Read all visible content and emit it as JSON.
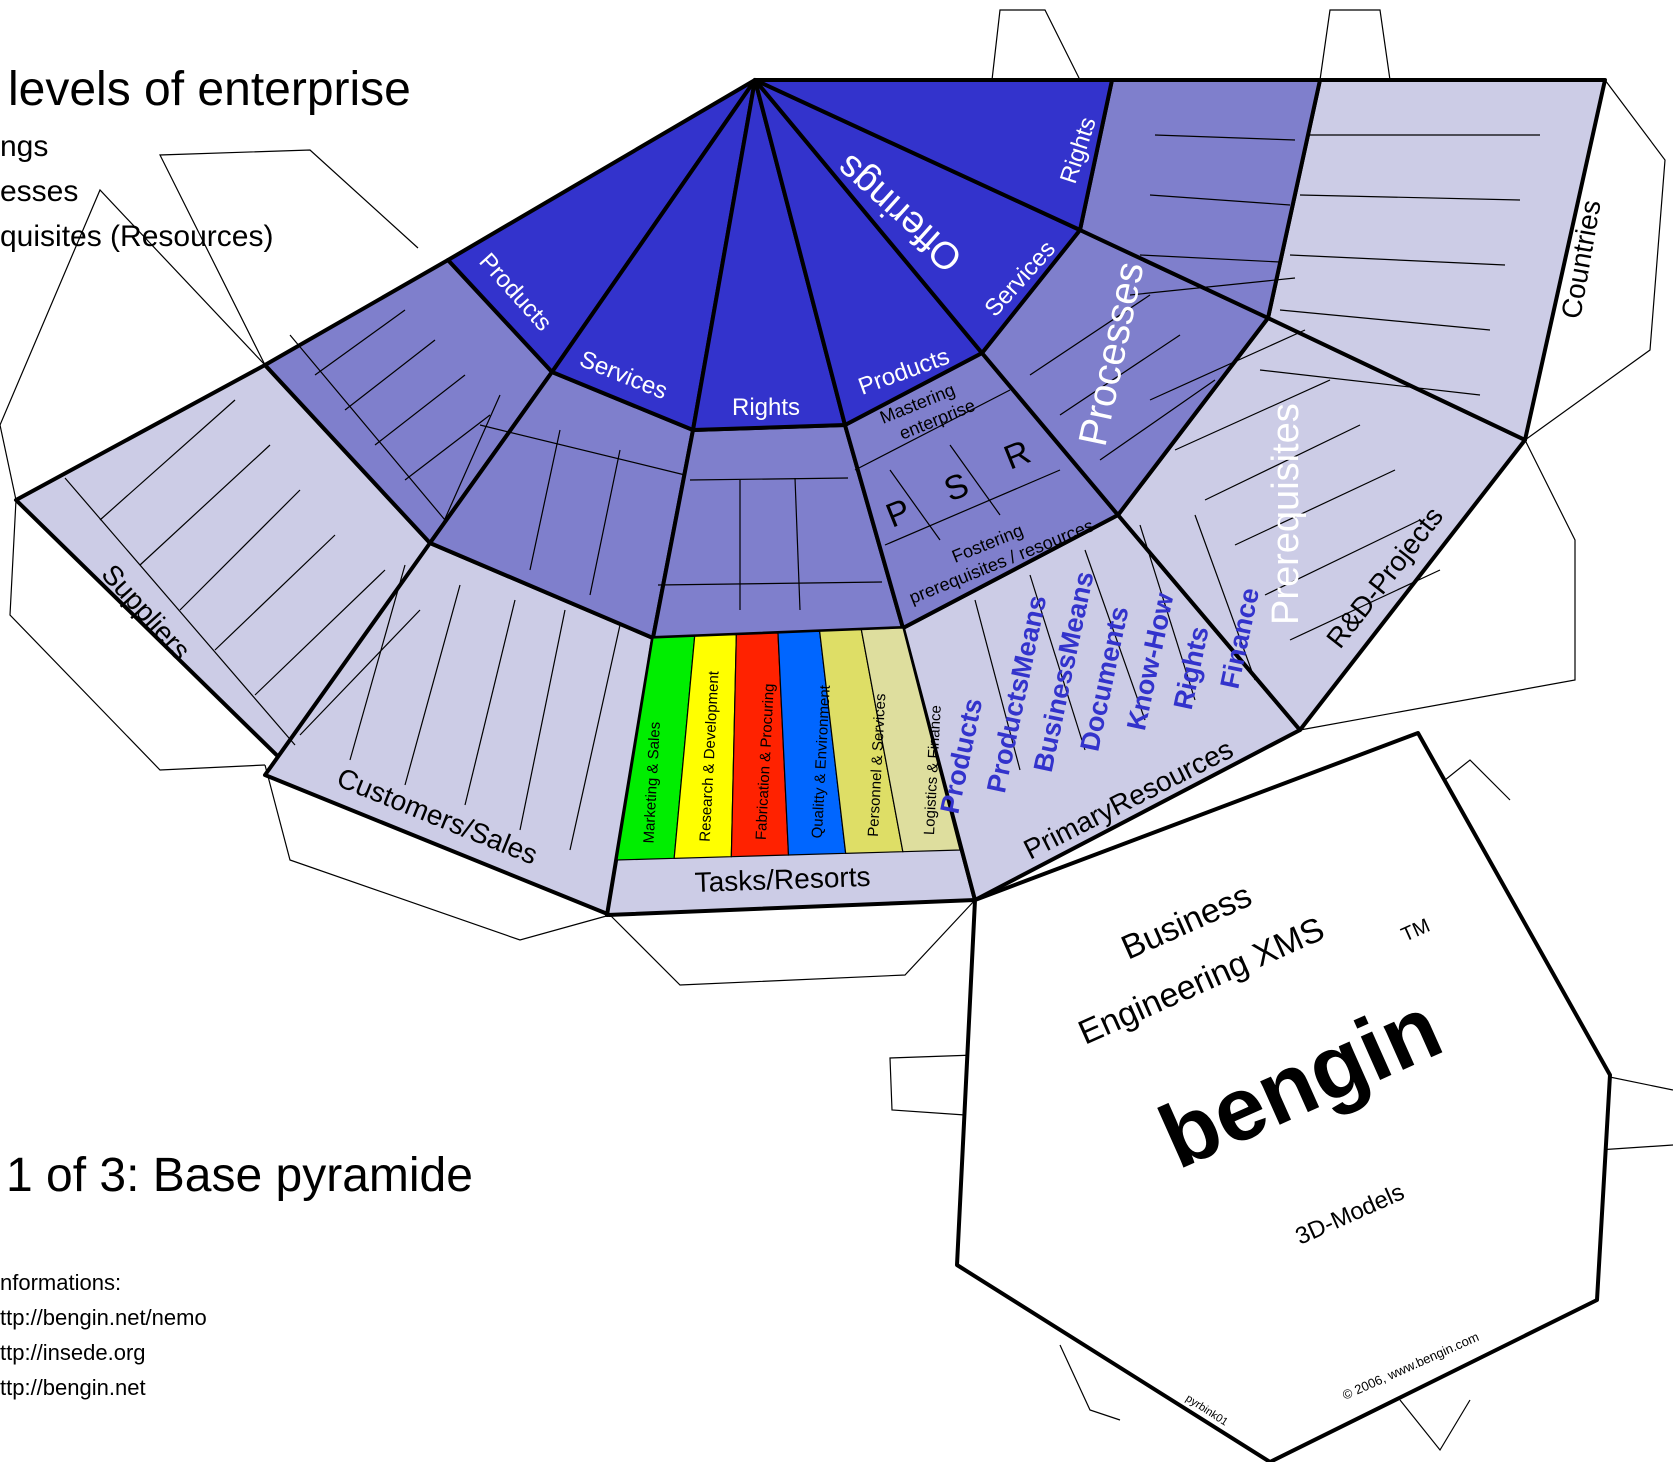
{
  "heading": {
    "title": "levels of enterprise",
    "items": [
      "ngs",
      "esses",
      "quisites (Resources)"
    ]
  },
  "part": "1 of 3: Base pyramide",
  "info": {
    "label": "nformations:",
    "links": [
      "ttp://bengin.net/nemo",
      "ttp://insede.org",
      "ttp://bengin.net"
    ]
  },
  "colors": {
    "offerings": "#3333cc",
    "processes": "#7f7fcc",
    "prerequisites": "#ccccE6",
    "outline": "#000000",
    "tasks": [
      "#00ee00",
      "#ffff00",
      "#ff2200",
      "#0066ff",
      "#dede66",
      "#dede9e"
    ]
  },
  "diagram": {
    "offerings": {
      "label": "Offerings",
      "segments": [
        "Products",
        "Services",
        "Rights",
        "Products",
        "Services",
        "Rights"
      ]
    },
    "processes": {
      "label": "Processes"
    },
    "prerequisites": {
      "label": "Prerequisites"
    },
    "mastering": "Mastering enterprise",
    "psr": [
      "P",
      "S",
      "R"
    ],
    "fostering": "Fostering prerequisites / resources",
    "outer_labels": {
      "suppliers": "Suppliers",
      "customers": "Customers/Sales",
      "tasks": "Tasks/Resorts",
      "primary": "PrimaryResources",
      "rnd": "R&D-Projects",
      "countries": "Countries"
    },
    "tasks": [
      "Marketing & Sales",
      "Research & Development",
      "Fabrication & Procuring",
      "Qualitty & Environment",
      "Personnel & Services",
      "Logistics & Finance"
    ],
    "resources": [
      "Products",
      "ProductsMeans",
      "BusinessMeans",
      "Documents",
      "Know-How",
      "Rights",
      "Finance"
    ]
  },
  "hexagon": {
    "line1": "Business",
    "line2": "Engineering XMS",
    "tm": "TM",
    "brand": "bengin",
    "sub": "3D-Models",
    "copyright": "© 2006, www.bengin.com",
    "code": "pyrbink01"
  }
}
